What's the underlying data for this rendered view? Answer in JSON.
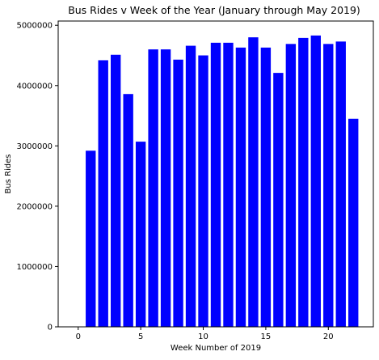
{
  "chart_data": {
    "type": "bar",
    "title": "Bus Rides v Week of the Year (January through May 2019)",
    "xlabel": "Week Number of 2019",
    "ylabel": "Bus Rides",
    "x": [
      1,
      2,
      3,
      4,
      5,
      6,
      7,
      8,
      9,
      10,
      11,
      12,
      13,
      14,
      15,
      16,
      17,
      18,
      19,
      20,
      21,
      22
    ],
    "values": [
      2920000,
      4420000,
      4510000,
      3860000,
      3070000,
      4600000,
      4600000,
      4430000,
      4660000,
      4500000,
      4710000,
      4710000,
      4630000,
      4800000,
      4630000,
      4210000,
      4690000,
      4790000,
      4830000,
      4690000,
      4730000,
      3450000
    ],
    "xlim": [
      -1.6,
      23.6
    ],
    "ylim": [
      0,
      5070000
    ],
    "xticks": [
      "0",
      "5",
      "10",
      "15",
      "20"
    ],
    "yticks": [
      "0",
      "1000000",
      "2000000",
      "3000000",
      "4000000",
      "5000000"
    ],
    "bar_color": "#0000ff",
    "grid": false,
    "legend": "none"
  }
}
